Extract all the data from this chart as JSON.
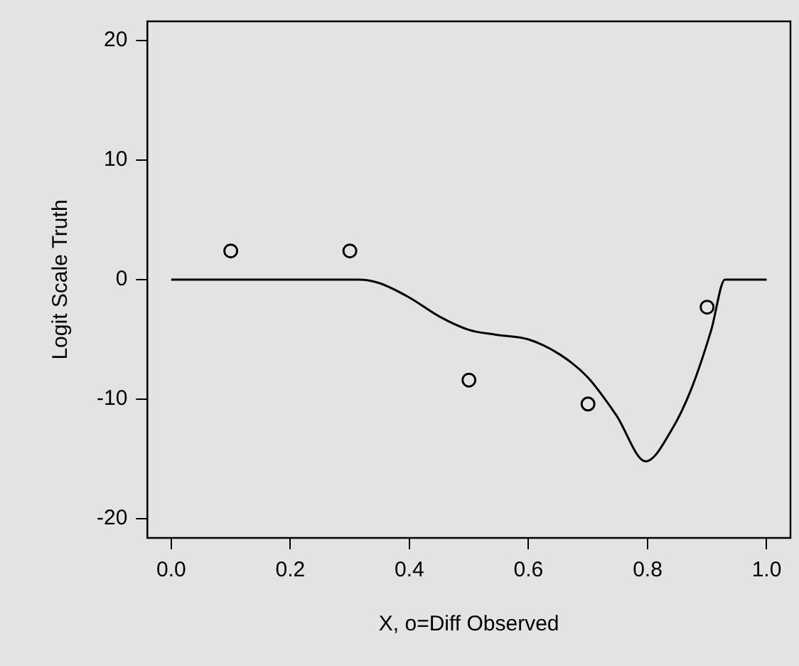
{
  "chart_data": {
    "type": "line",
    "xlabel": "X, o=Diff Observed",
    "ylabel": "Logit Scale Truth",
    "xlim": [
      -0.04,
      1.04
    ],
    "xticks": [
      {
        "value": 0,
        "label": "0.0"
      },
      {
        "value": 0.2,
        "label": "0.2"
      },
      {
        "value": 0.4,
        "label": "0.4"
      },
      {
        "value": 0.6,
        "label": "0.6"
      },
      {
        "value": 0.8,
        "label": "0.8"
      },
      {
        "value": 1,
        "label": "1.0"
      }
    ],
    "ylim": [
      -21.6,
      21.6
    ],
    "yticks": [
      -20,
      -10,
      0,
      10,
      20
    ],
    "grid": false,
    "legend": false,
    "series": [
      {
        "color": "#000000",
        "marker": "none",
        "line_style": "solid",
        "x": [
          0,
          0.316,
          0.35,
          0.4,
          0.451,
          0.5,
          0.544,
          0.6,
          0.654,
          0.7,
          0.747,
          0.797,
          0.84,
          0.873,
          0.907,
          0.93,
          1.0
        ],
        "values": [
          0,
          0,
          -0.3,
          -1.5,
          -3.1,
          -4.2,
          -4.6,
          -5.0,
          -6.3,
          -8.2,
          -11.3,
          -15.2,
          -12.6,
          -9.2,
          -4.2,
          0,
          0
        ]
      },
      {
        "type": "scatter",
        "color": "#000000",
        "marker": "circle",
        "x": [
          0.1,
          0.3,
          0.5,
          0.7,
          0.9
        ],
        "values": [
          2.4,
          2.4,
          -8.4,
          -10.4,
          -2.3
        ]
      }
    ]
  }
}
